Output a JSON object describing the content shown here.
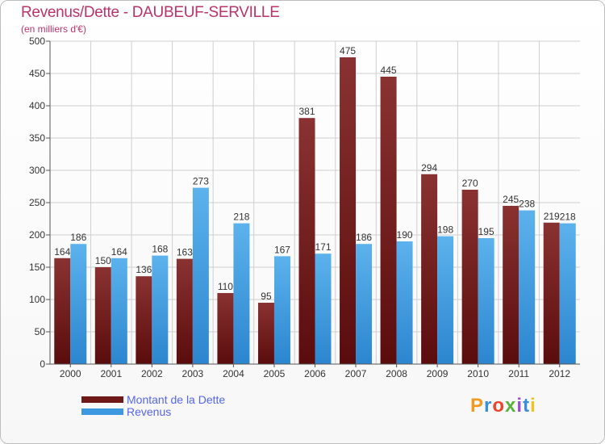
{
  "header": {
    "title": "Revenus/Dette - DAUBEUF-SERVILLE",
    "subtitle": "(en milliers d'€)"
  },
  "legend": {
    "items": [
      {
        "label": "Montant de la Dette",
        "color": "#6e1818"
      },
      {
        "label": "Revenus",
        "color": "#3d9ae0"
      }
    ]
  },
  "logo": {
    "text": "Proxiti",
    "letters": [
      "P",
      "r",
      "o",
      "x",
      "i",
      "t",
      "i"
    ],
    "colors": [
      "#f29a1f",
      "#3b8fd8",
      "#e8452c",
      "#59b33c",
      "#9b4fc6",
      "#3b8fd8",
      "#f2c21f"
    ]
  },
  "colors": {
    "dette_dark": "#5a0c0c",
    "dette_light": "#8a3232",
    "revenus_dark": "#2c86cf",
    "revenus_light": "#5cb2ec",
    "grid": "#cfcfcf"
  },
  "chart_data": {
    "type": "bar",
    "title": "Revenus/Dette - DAUBEUF-SERVILLE",
    "subtitle": "(en milliers d'€)",
    "categories": [
      "2000",
      "2001",
      "2002",
      "2003",
      "2004",
      "2005",
      "2006",
      "2007",
      "2008",
      "2009",
      "2010",
      "2011",
      "2012"
    ],
    "series": [
      {
        "name": "Montant de la Dette",
        "values": [
          164,
          150,
          136,
          163,
          110,
          95,
          381,
          475,
          445,
          294,
          270,
          245,
          219
        ]
      },
      {
        "name": "Revenus",
        "values": [
          186,
          164,
          168,
          273,
          218,
          167,
          171,
          186,
          190,
          198,
          195,
          238,
          218
        ]
      }
    ],
    "ylim": [
      0,
      500
    ],
    "yticks": [
      0,
      50,
      100,
      150,
      200,
      250,
      300,
      350,
      400,
      450,
      500
    ],
    "grid": true,
    "legend_position": "bottom-left"
  }
}
